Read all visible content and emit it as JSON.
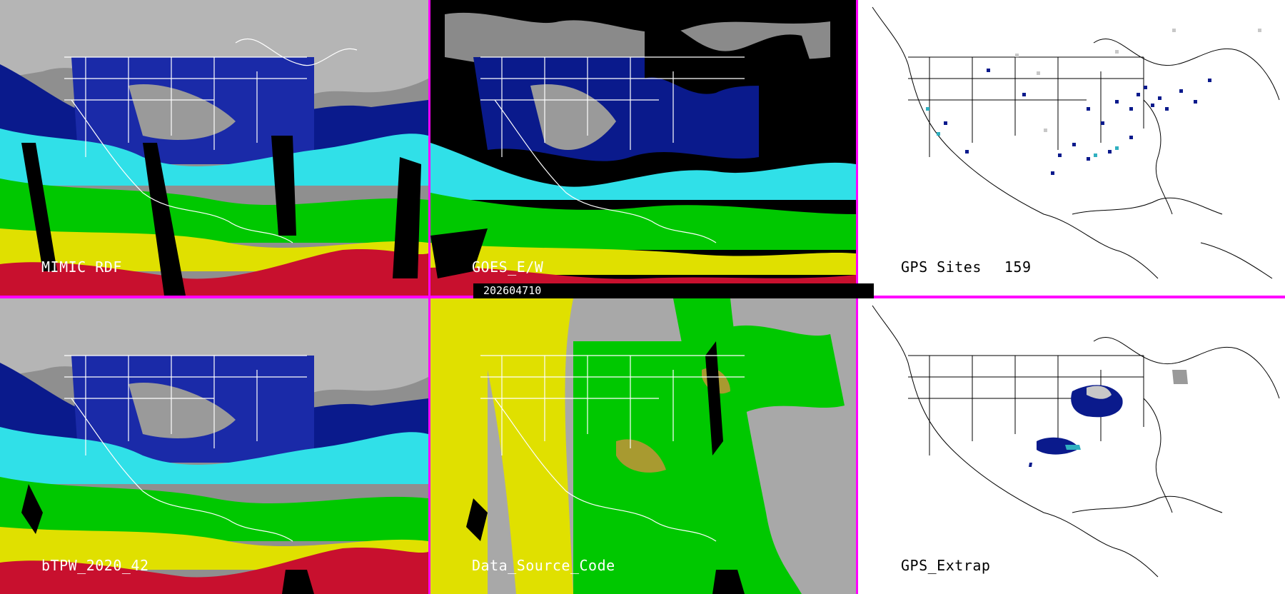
{
  "timestamp": "202604710",
  "panels": [
    {
      "label": "MIMIC RDF",
      "style": "satellite-wv-with-gaps"
    },
    {
      "label": "GOES_E/W",
      "style": "satellite-wv-clouds-black"
    },
    {
      "label": "GPS Sites",
      "count": "159",
      "style": "gps-site-markers"
    },
    {
      "label": "bTPW_2020_42",
      "style": "satellite-wv-blended"
    },
    {
      "label": "Data_Source_Code",
      "style": "source-code-map"
    },
    {
      "label": "GPS_Extrap",
      "style": "gps-extrapolation"
    }
  ],
  "colors": {
    "divider": "#ff00ff",
    "moist_red": "#c8102e",
    "yellow": "#e0e000",
    "green": "#00c800",
    "cyan": "#30e0e8",
    "navy": "#0a1a8c",
    "gray": "#9a9a9a",
    "source_gray": "#a8a8a8"
  },
  "legend_map_base": "white-outline-north-america"
}
